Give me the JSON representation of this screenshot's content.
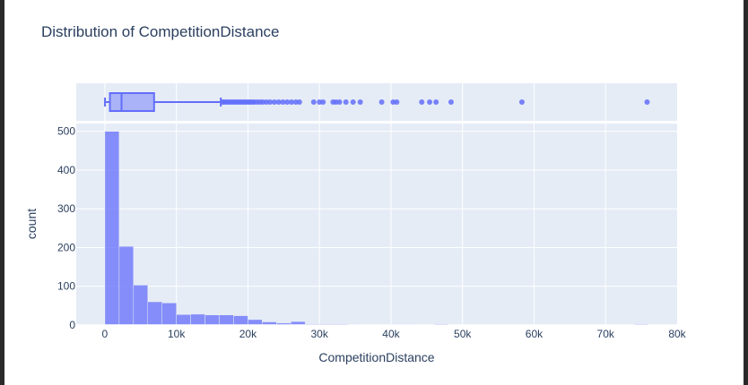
{
  "chart_data": {
    "type": "histogram",
    "title": "Distribution of CompetitionDistance",
    "xlabel": "CompetitionDistance",
    "ylabel": "count",
    "xlim": [
      -4000,
      80000
    ],
    "ylim": [
      0,
      520
    ],
    "xticks": [
      0,
      10000,
      20000,
      30000,
      40000,
      50000,
      60000,
      70000,
      80000
    ],
    "xtick_labels": [
      "0",
      "10k",
      "20k",
      "30k",
      "40k",
      "50k",
      "60k",
      "70k",
      "80k"
    ],
    "yticks": [
      0,
      100,
      200,
      300,
      400,
      500
    ],
    "ytick_labels": [
      "0",
      "100",
      "200",
      "300",
      "400",
      "500"
    ],
    "bin_width": 2000,
    "bin_starts": [
      0,
      2000,
      4000,
      6000,
      8000,
      10000,
      12000,
      14000,
      16000,
      18000,
      20000,
      22000,
      24000,
      26000,
      28000,
      30000,
      32000,
      34000,
      36000,
      38000,
      40000,
      42000,
      44000,
      46000,
      48000,
      50000,
      52000,
      54000,
      56000,
      58000,
      60000,
      62000,
      64000,
      66000,
      68000,
      70000,
      72000,
      74000
    ],
    "counts": [
      500,
      203,
      103,
      60,
      57,
      27,
      28,
      26,
      26,
      24,
      14,
      8,
      5,
      9,
      3,
      3,
      3,
      2,
      1,
      0,
      2,
      2,
      0,
      3,
      1,
      1,
      0,
      0,
      0,
      1,
      0,
      0,
      0,
      0,
      0,
      0,
      0,
      3
    ],
    "bar_color": "#636efa",
    "box": {
      "min": 20,
      "q1": 710,
      "median": 2330,
      "q3": 6880,
      "upper_fence": 16210,
      "outliers": [
        16500,
        16700,
        17000,
        17300,
        17600,
        17900,
        18200,
        18500,
        18800,
        19100,
        19400,
        19700,
        20000,
        20300,
        20600,
        20900,
        21300,
        21700,
        22100,
        22600,
        23100,
        23700,
        24300,
        24900,
        25500,
        26100,
        26700,
        27200,
        29200,
        30000,
        30500,
        31900,
        32300,
        32800,
        33700,
        34700,
        35700,
        38700,
        40300,
        40800,
        44300,
        45400,
        46300,
        48400,
        58300,
        75800
      ]
    },
    "grid": true
  }
}
